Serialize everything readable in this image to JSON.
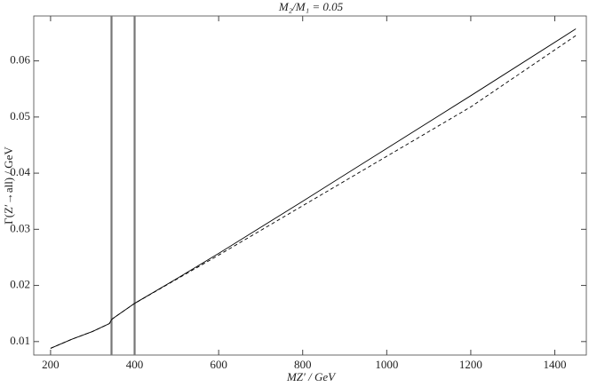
{
  "chart_data": {
    "type": "line",
    "title": "M₂/M₁ = 0.05",
    "x_label": "MZ′ / GeV",
    "y_label": "Γ(Z′→all) / GeV",
    "x": [
      200,
      250,
      300,
      340,
      345,
      350,
      400,
      500,
      600,
      800,
      1000,
      1200,
      1450
    ],
    "series": [
      {
        "color": "#000000",
        "style": "solid",
        "values": [
          0.0088,
          0.0104,
          0.0118,
          0.0132,
          0.0139,
          0.0142,
          0.0168,
          0.0212,
          0.0257,
          0.035,
          0.0444,
          0.0538,
          0.0657
        ]
      },
      {
        "color": "#000000",
        "style": "dashed",
        "values": [
          0.0088,
          0.0104,
          0.0118,
          0.0132,
          0.0139,
          0.0142,
          0.0168,
          0.0211,
          0.0254,
          0.0342,
          0.043,
          0.0518,
          0.0645
        ]
      }
    ],
    "vertical_lines": [
      345,
      400
    ],
    "vertical_line_color": "#777777",
    "xlim": [
      160,
      1475
    ],
    "ylim": [
      0.0076,
      0.068
    ],
    "xticks": [
      200,
      400,
      600,
      800,
      1000,
      1200,
      1400
    ],
    "yticks": [
      0.01,
      0.02,
      0.03,
      0.04,
      0.05,
      0.06
    ],
    "grid": false
  }
}
